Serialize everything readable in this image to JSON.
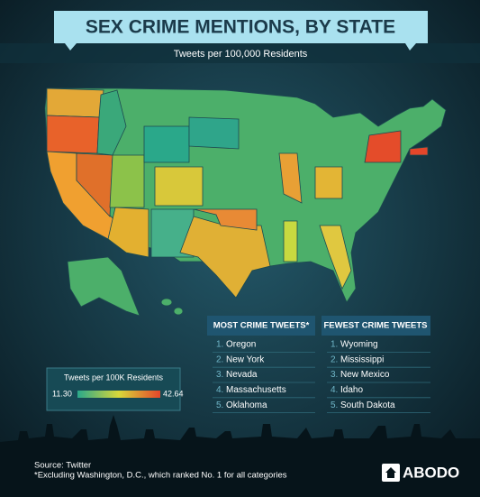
{
  "header": {
    "title": "SEX CRIME MENTIONS, BY STATE",
    "subtitle": "Tweets per 100,000 Residents"
  },
  "legend": {
    "title": "Tweets per 100K Residents",
    "min": "11.30",
    "max": "42.64"
  },
  "most": {
    "title": "MOST CRIME TWEETS*",
    "items": [
      {
        "rank": "1.",
        "state": "Oregon"
      },
      {
        "rank": "2.",
        "state": "New York"
      },
      {
        "rank": "3.",
        "state": "Nevada"
      },
      {
        "rank": "4.",
        "state": "Massachusetts"
      },
      {
        "rank": "5.",
        "state": "Oklahoma"
      }
    ]
  },
  "fewest": {
    "title": "FEWEST CRIME TWEETS",
    "items": [
      {
        "rank": "1.",
        "state": "Wyoming"
      },
      {
        "rank": "2.",
        "state": "Mississippi"
      },
      {
        "rank": "3.",
        "state": "New Mexico"
      },
      {
        "rank": "4.",
        "state": "Idaho"
      },
      {
        "rank": "5.",
        "state": "South Dakota"
      }
    ]
  },
  "footer": {
    "source": "Source: Twitter",
    "note": "*Excluding Washington, D.C., which ranked No. 1 for all categories",
    "brand": "ABODO"
  }
}
